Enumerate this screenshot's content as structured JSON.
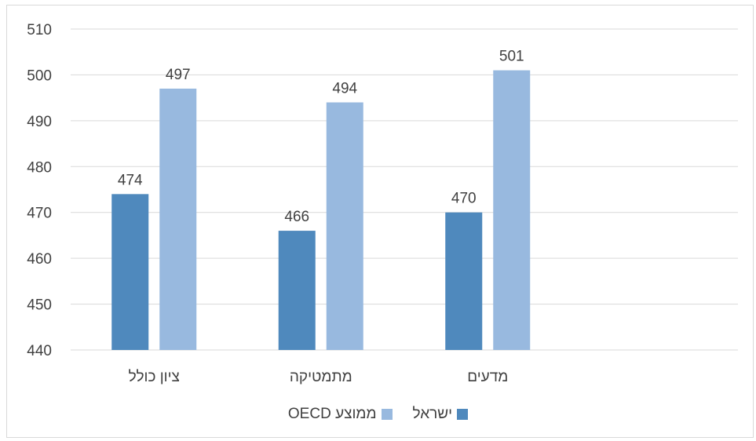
{
  "chart_data": {
    "type": "bar",
    "categories": [
      "ציון כולל",
      "מתמטיקה",
      "מדעים",
      ""
    ],
    "series": [
      {
        "name": "ישראל",
        "values": [
          474,
          466,
          470,
          null
        ],
        "color": "#4f89bd"
      },
      {
        "name": "ממוצע OECD",
        "values": [
          497,
          494,
          501,
          null
        ],
        "color": "#98b9df"
      }
    ],
    "title": "",
    "xlabel": "",
    "ylabel": "",
    "ylim": [
      440,
      510
    ],
    "yticks": [
      440,
      450,
      460,
      470,
      480,
      490,
      500,
      510
    ],
    "grid": true,
    "legend": "bottom"
  }
}
